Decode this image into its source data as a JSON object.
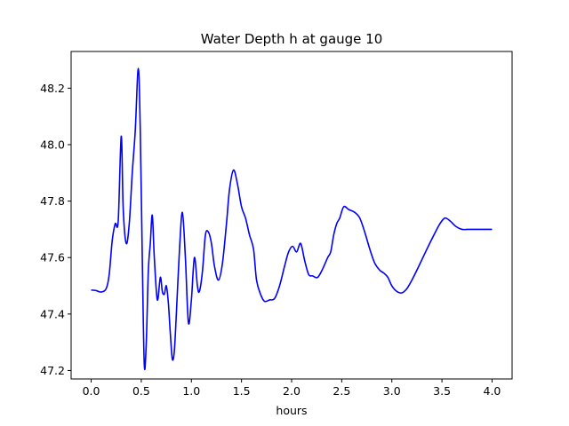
{
  "chart_data": {
    "type": "line",
    "title": "Water Depth h at gauge 10",
    "xlabel": "hours",
    "ylabel": "",
    "xlim": [
      -0.2,
      4.2
    ],
    "ylim": [
      47.17,
      48.33
    ],
    "xticks": [
      0.0,
      0.5,
      1.0,
      1.5,
      2.0,
      2.5,
      3.0,
      3.5,
      4.0
    ],
    "xtick_labels": [
      "0.0",
      "0.5",
      "1.0",
      "1.5",
      "2.0",
      "2.5",
      "3.0",
      "3.5",
      "4.0"
    ],
    "yticks": [
      47.2,
      47.4,
      47.6,
      47.8,
      48.0,
      48.2
    ],
    "ytick_labels": [
      "47.2",
      "47.4",
      "47.6",
      "47.8",
      "48.0",
      "48.2"
    ],
    "grid": false,
    "series": [
      {
        "color": "#0000ff",
        "x": [
          0.0,
          0.05,
          0.1,
          0.15,
          0.18,
          0.21,
          0.24,
          0.27,
          0.3,
          0.32,
          0.35,
          0.38,
          0.41,
          0.44,
          0.47,
          0.49,
          0.51,
          0.53,
          0.55,
          0.57,
          0.59,
          0.61,
          0.63,
          0.66,
          0.69,
          0.71,
          0.73,
          0.75,
          0.77,
          0.79,
          0.81,
          0.83,
          0.85,
          0.88,
          0.91,
          0.94,
          0.97,
          1.0,
          1.03,
          1.06,
          1.08,
          1.11,
          1.14,
          1.17,
          1.2,
          1.23,
          1.27,
          1.31,
          1.35,
          1.38,
          1.42,
          1.46,
          1.5,
          1.54,
          1.58,
          1.62,
          1.65,
          1.69,
          1.73,
          1.78,
          1.83,
          1.88,
          1.93,
          1.97,
          2.01,
          2.05,
          2.09,
          2.13,
          2.17,
          2.21,
          2.26,
          2.31,
          2.36,
          2.39,
          2.42,
          2.45,
          2.48,
          2.52,
          2.57,
          2.63,
          2.68,
          2.73,
          2.78,
          2.83,
          2.88,
          2.92,
          2.96,
          3.0,
          3.05,
          3.1,
          3.15,
          3.2,
          3.27,
          3.35,
          3.42,
          3.48,
          3.53,
          3.58,
          3.64,
          3.7,
          3.76,
          3.81,
          3.86,
          3.91,
          3.96,
          4.0
        ],
        "y": [
          47.485,
          47.483,
          47.478,
          47.49,
          47.54,
          47.66,
          47.72,
          47.73,
          48.03,
          47.77,
          47.65,
          47.72,
          47.9,
          48.05,
          48.27,
          48.05,
          47.6,
          47.22,
          47.3,
          47.55,
          47.65,
          47.75,
          47.6,
          47.45,
          47.53,
          47.48,
          47.47,
          47.5,
          47.44,
          47.33,
          47.24,
          47.27,
          47.4,
          47.62,
          47.76,
          47.6,
          47.37,
          47.45,
          47.6,
          47.5,
          47.48,
          47.55,
          47.68,
          47.69,
          47.65,
          47.57,
          47.52,
          47.58,
          47.72,
          47.84,
          47.91,
          47.86,
          47.78,
          47.74,
          47.68,
          47.63,
          47.52,
          47.47,
          47.445,
          47.45,
          47.455,
          47.5,
          47.57,
          47.62,
          47.64,
          47.62,
          47.65,
          47.59,
          47.54,
          47.535,
          47.53,
          47.56,
          47.6,
          47.62,
          47.68,
          47.72,
          47.74,
          47.78,
          47.77,
          47.76,
          47.74,
          47.69,
          47.63,
          47.58,
          47.555,
          47.545,
          47.53,
          47.5,
          47.48,
          47.475,
          47.49,
          47.52,
          47.57,
          47.63,
          47.68,
          47.72,
          47.74,
          47.73,
          47.71,
          47.7,
          47.7,
          47.7,
          47.7,
          47.7,
          47.7,
          47.7
        ]
      }
    ]
  }
}
